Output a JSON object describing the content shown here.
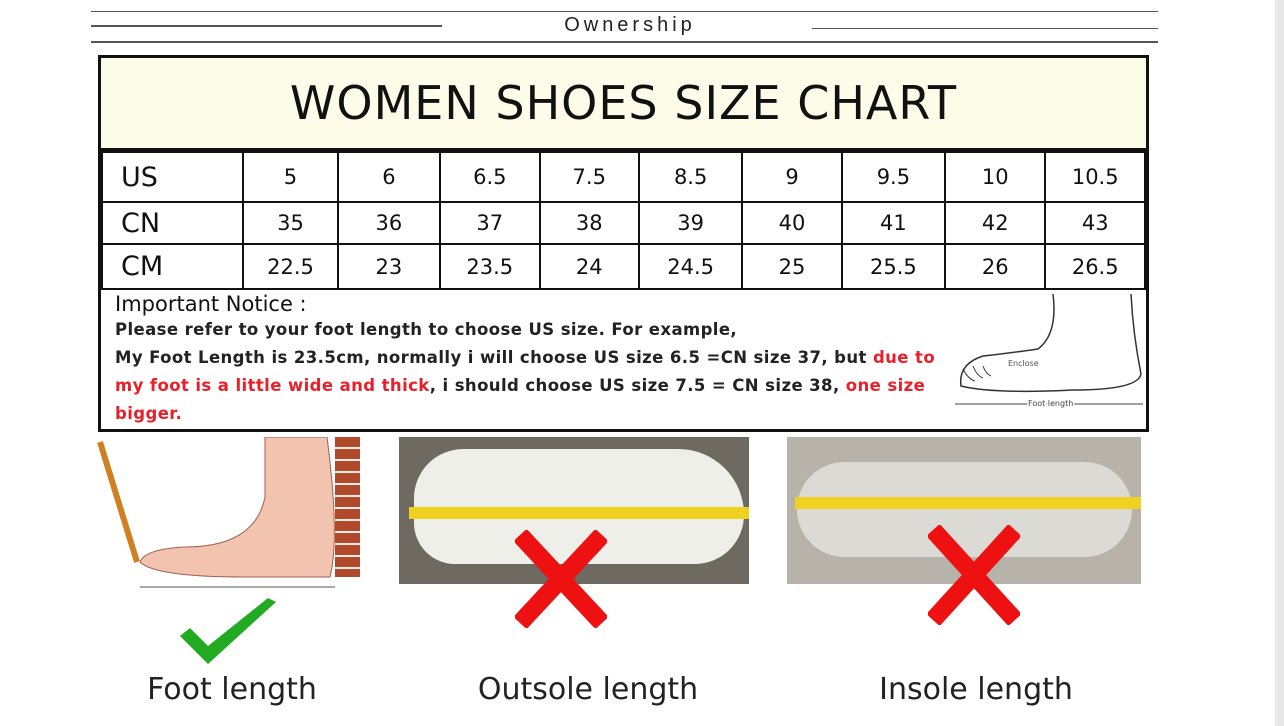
{
  "header": {
    "title": "Ownership"
  },
  "chart": {
    "title": "WOMEN SHOES SIZE CHART",
    "rows": [
      {
        "label": "US",
        "values": [
          "5",
          "6",
          "6.5",
          "7.5",
          "8.5",
          "9",
          "9.5",
          "10",
          "10.5"
        ]
      },
      {
        "label": "CN",
        "values": [
          "35",
          "36",
          "37",
          "38",
          "39",
          "40",
          "41",
          "42",
          "43"
        ]
      },
      {
        "label": "CM",
        "values": [
          "22.5",
          "23",
          "23.5",
          "24",
          "24.5",
          "25",
          "25.5",
          "26",
          "26.5"
        ]
      }
    ]
  },
  "notice": {
    "heading": "Important Notice :",
    "line1": "Please refer to your foot length to choose US size. For example,",
    "line2a": "My Foot Length is 23.5cm, normally i will choose US size 6.5 =CN size 37, but ",
    "line2b": "due to my foot is a little wide and thick",
    "line2c": ", i should choose US size 7.5 = CN size 38, ",
    "line2d": "one size bigger.",
    "diagram_enclose": "Enclose",
    "diagram_foot_length": "Foot length"
  },
  "methods": [
    {
      "label": "Foot length",
      "mark": "check",
      "color": "#22aa22"
    },
    {
      "label": "Outsole length",
      "mark": "cross",
      "color": "#ee1111"
    },
    {
      "label": "Insole length",
      "mark": "cross",
      "color": "#ee1111"
    }
  ]
}
